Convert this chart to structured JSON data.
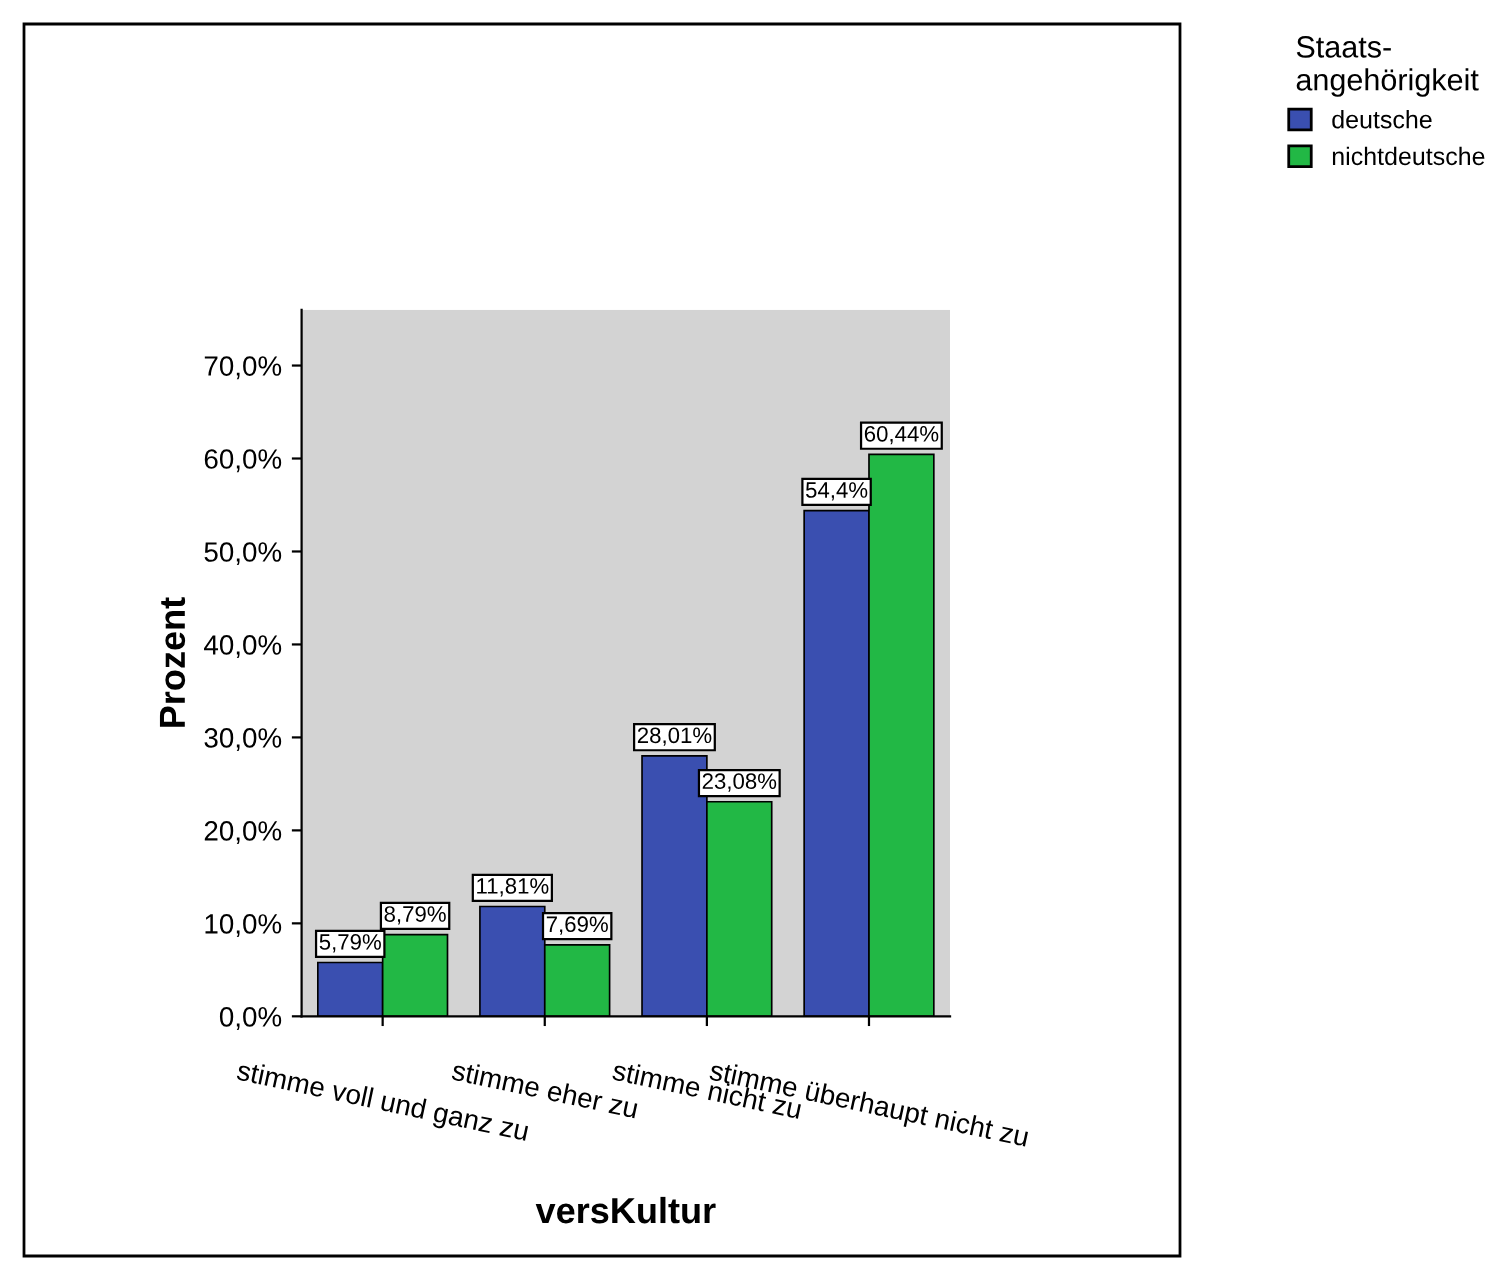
{
  "chart_data": {
    "type": "bar",
    "xlabel": "versKultur",
    "ylabel": "Prozent",
    "legend_title": "Staats-\nangehörigkeit",
    "categories": [
      "stimme voll und ganz zu",
      "stimme eher zu",
      "stimme nicht zu",
      "stimme überhaupt nicht zu"
    ],
    "series": [
      {
        "name": "deutsche",
        "color": "#3a4fb0",
        "values": [
          5.79,
          11.81,
          28.01,
          54.4
        ],
        "value_labels": [
          "5,79%",
          "11,81%",
          "28,01%",
          "54,4%"
        ]
      },
      {
        "name": "nichtdeutsche",
        "color": "#22b845",
        "values": [
          8.79,
          7.69,
          23.08,
          60.44
        ],
        "value_labels": [
          "8,79%",
          "7,69%",
          "23,08%",
          "60,44%"
        ]
      }
    ],
    "ylim": [
      0,
      76
    ],
    "yticks": [
      {
        "value": 0,
        "label": "0,0%"
      },
      {
        "value": 10,
        "label": "10,0%"
      },
      {
        "value": 20,
        "label": "20,0%"
      },
      {
        "value": 30,
        "label": "30,0%"
      },
      {
        "value": 40,
        "label": "40,0%"
      },
      {
        "value": 50,
        "label": "50,0%"
      },
      {
        "value": 60,
        "label": "60,0%"
      },
      {
        "value": 70,
        "label": "70,0%"
      }
    ],
    "grid": false,
    "legend": "top right"
  }
}
